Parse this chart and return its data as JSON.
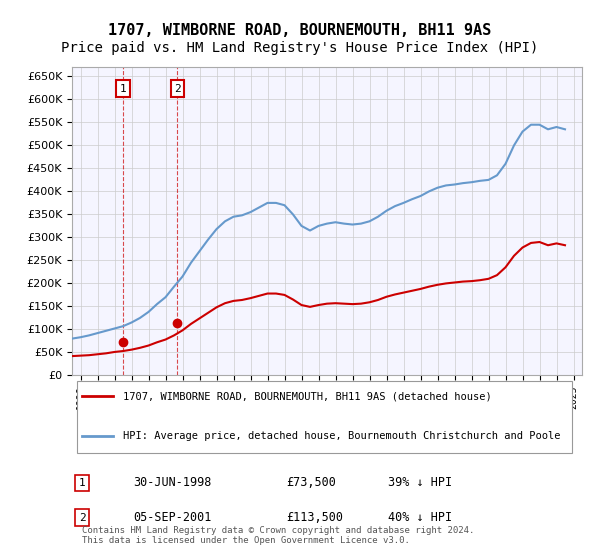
{
  "title": "1707, WIMBORNE ROAD, BOURNEMOUTH, BH11 9AS",
  "subtitle": "Price paid vs. HM Land Registry's House Price Index (HPI)",
  "title_fontsize": 11,
  "subtitle_fontsize": 10,
  "ylabel_ticks": [
    "£0",
    "£50K",
    "£100K",
    "£150K",
    "£200K",
    "£250K",
    "£300K",
    "£350K",
    "£400K",
    "£450K",
    "£500K",
    "£550K",
    "£600K",
    "£650K"
  ],
  "ytick_values": [
    0,
    50000,
    100000,
    150000,
    200000,
    250000,
    300000,
    350000,
    400000,
    450000,
    500000,
    550000,
    600000,
    650000
  ],
  "ylim": [
    0,
    670000
  ],
  "xlim_start": 1995.5,
  "xlim_end": 2025.5,
  "xtick_years": [
    1995,
    1996,
    1997,
    1998,
    1999,
    2000,
    2001,
    2002,
    2003,
    2004,
    2005,
    2006,
    2007,
    2008,
    2009,
    2010,
    2011,
    2012,
    2013,
    2014,
    2015,
    2016,
    2017,
    2018,
    2019,
    2020,
    2021,
    2022,
    2023,
    2024,
    2025
  ],
  "hpi_color": "#6699cc",
  "price_color": "#cc0000",
  "marker_color": "#cc0000",
  "transaction_marker_color": "#cc0000",
  "grid_color": "#cccccc",
  "background_color": "#ffffff",
  "plot_bg_color": "#f5f5ff",
  "legend_entry1": "1707, WIMBORNE ROAD, BOURNEMOUTH, BH11 9AS (detached house)",
  "legend_entry2": "HPI: Average price, detached house, Bournemouth Christchurch and Poole",
  "transaction1_label": "1",
  "transaction1_date": "30-JUN-1998",
  "transaction1_price": "£73,500",
  "transaction1_hpi": "39% ↓ HPI",
  "transaction1_year": 1998.5,
  "transaction1_value": 73500,
  "transaction2_label": "2",
  "transaction2_date": "05-SEP-2001",
  "transaction2_price": "£113,500",
  "transaction2_hpi": "40% ↓ HPI",
  "transaction2_year": 2001.7,
  "transaction2_value": 113500,
  "footer_text": "Contains HM Land Registry data © Crown copyright and database right 2024.\nThis data is licensed under the Open Government Licence v3.0.",
  "hpi_data": {
    "years": [
      1995.5,
      1996.0,
      1996.5,
      1997.0,
      1997.5,
      1998.0,
      1998.5,
      1999.0,
      1999.5,
      2000.0,
      2000.5,
      2001.0,
      2001.5,
      2002.0,
      2002.5,
      2003.0,
      2003.5,
      2004.0,
      2004.5,
      2005.0,
      2005.5,
      2006.0,
      2006.5,
      2007.0,
      2007.5,
      2008.0,
      2008.5,
      2009.0,
      2009.5,
      2010.0,
      2010.5,
      2011.0,
      2011.5,
      2012.0,
      2012.5,
      2013.0,
      2013.5,
      2014.0,
      2014.5,
      2015.0,
      2015.5,
      2016.0,
      2016.5,
      2017.0,
      2017.5,
      2018.0,
      2018.5,
      2019.0,
      2019.5,
      2020.0,
      2020.5,
      2021.0,
      2021.5,
      2022.0,
      2022.5,
      2023.0,
      2023.5,
      2024.0,
      2024.5
    ],
    "values": [
      80000,
      83000,
      87000,
      92000,
      97000,
      102000,
      107000,
      115000,
      125000,
      138000,
      155000,
      170000,
      193000,
      215000,
      245000,
      270000,
      295000,
      318000,
      335000,
      345000,
      348000,
      355000,
      365000,
      375000,
      375000,
      370000,
      350000,
      325000,
      315000,
      325000,
      330000,
      333000,
      330000,
      328000,
      330000,
      335000,
      345000,
      358000,
      368000,
      375000,
      383000,
      390000,
      400000,
      408000,
      413000,
      415000,
      418000,
      420000,
      423000,
      425000,
      435000,
      460000,
      500000,
      530000,
      545000,
      545000,
      535000,
      540000,
      535000
    ]
  },
  "price_index_data": {
    "years": [
      1995.5,
      1996.0,
      1996.5,
      1997.0,
      1997.5,
      1998.0,
      1998.5,
      1999.0,
      1999.5,
      2000.0,
      2000.5,
      2001.0,
      2001.5,
      2002.0,
      2002.5,
      2003.0,
      2003.5,
      2004.0,
      2004.5,
      2005.0,
      2005.5,
      2006.0,
      2006.5,
      2007.0,
      2007.5,
      2008.0,
      2008.5,
      2009.0,
      2009.5,
      2010.0,
      2010.5,
      2011.0,
      2011.5,
      2012.0,
      2012.5,
      2013.0,
      2013.5,
      2014.0,
      2014.5,
      2015.0,
      2015.5,
      2016.0,
      2016.5,
      2017.0,
      2017.5,
      2018.0,
      2018.5,
      2019.0,
      2019.5,
      2020.0,
      2020.5,
      2021.0,
      2021.5,
      2022.0,
      2022.5,
      2023.0,
      2023.5,
      2024.0,
      2024.5
    ],
    "values": [
      42000,
      43000,
      44000,
      46000,
      48000,
      51000,
      53000,
      56000,
      60000,
      65000,
      72000,
      78000,
      87000,
      98000,
      112000,
      124000,
      136000,
      148000,
      157000,
      162000,
      164000,
      168000,
      173000,
      178000,
      178000,
      175000,
      165000,
      153000,
      149000,
      153000,
      156000,
      157000,
      156000,
      155000,
      156000,
      159000,
      164000,
      171000,
      176000,
      180000,
      184000,
      188000,
      193000,
      197000,
      200000,
      202000,
      204000,
      205000,
      207000,
      210000,
      218000,
      235000,
      260000,
      278000,
      288000,
      290000,
      283000,
      287000,
      283000
    ]
  }
}
